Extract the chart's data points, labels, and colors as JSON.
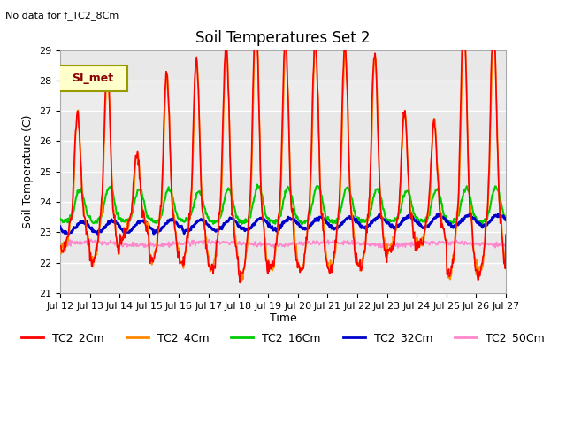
{
  "title": "Soil Temperatures Set 2",
  "top_left_note": "No data for f_TC2_8Cm",
  "ylabel": "Soil Temperature (C)",
  "xlabel": "Time",
  "legend_label": "SI_met",
  "ylim": [
    21.0,
    29.0
  ],
  "yticks": [
    21.0,
    22.0,
    23.0,
    24.0,
    25.0,
    26.0,
    27.0,
    28.0,
    29.0
  ],
  "series_colors": {
    "TC2_2Cm": "#ff0000",
    "TC2_4Cm": "#ff8800",
    "TC2_16Cm": "#00cc00",
    "TC2_32Cm": "#0000cc",
    "TC2_50Cm": "#ff88cc"
  },
  "series_linewidths": {
    "TC2_2Cm": 1.2,
    "TC2_4Cm": 1.2,
    "TC2_16Cm": 1.5,
    "TC2_32Cm": 2.0,
    "TC2_50Cm": 1.2
  },
  "xtick_labels": [
    "Jul 12",
    "Jul 13",
    "Jul 14",
    "Jul 15",
    "Jul 16",
    "Jul 17",
    "Jul 18",
    "Jul 19",
    "Jul 20",
    "Jul 21",
    "Jul 22",
    "Jul 23",
    "Jul 24",
    "Jul 25",
    "Jul 26",
    "Jul 27"
  ],
  "plot_bg_color": "#e8e8e8",
  "grid_color": "#ffffff",
  "peak_amps": [
    3.5,
    5.0,
    2.2,
    4.8,
    5.3,
    5.7,
    6.6,
    5.8,
    5.9,
    5.7,
    5.5,
    3.5,
    3.2,
    6.5,
    6.3,
    2.0
  ],
  "base_2cm": 23.5,
  "base_4cm": 23.5,
  "base_16cm": 23.6,
  "base_32cm": 23.15,
  "base_50cm": 22.62
}
